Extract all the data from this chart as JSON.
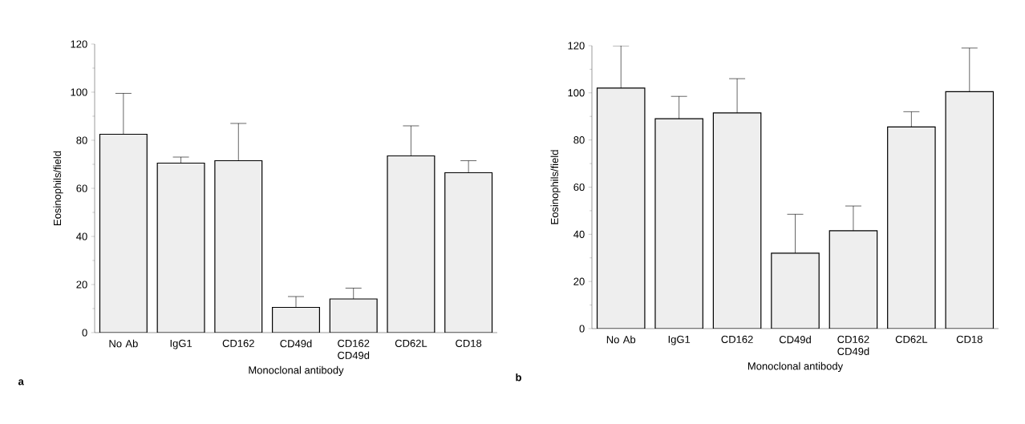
{
  "chart_data": [
    {
      "type": "bar",
      "categories": [
        "No Ab",
        "IgG1",
        "CD162",
        "CD49d",
        "CD162 CD49d",
        "CD62L",
        "CD18"
      ],
      "values": [
        82.5,
        70.5,
        71.5,
        10.5,
        14,
        73.5,
        66.5
      ],
      "errors": [
        [
          82.5,
          99.5
        ],
        [
          70.5,
          73
        ],
        [
          71.5,
          87
        ],
        [
          10.5,
          15
        ],
        [
          14,
          18.5
        ],
        [
          73.5,
          86
        ],
        [
          66.5,
          71.5
        ]
      ],
      "color": "#eeeeee",
      "ylim": [
        0,
        120
      ],
      "yticks": [
        0,
        20,
        40,
        60,
        80,
        100,
        120
      ],
      "ylabel": "Eosinophils/field",
      "xlabel": "Monoclonal antibody",
      "annotations": [
        "a"
      ]
    },
    {
      "type": "bar",
      "categories": [
        "No Ab",
        "IgG1",
        "CD162",
        "CD49d",
        "CD162 CD49d",
        "CD62L",
        "CD18"
      ],
      "values": [
        102,
        89,
        91.5,
        32,
        41.5,
        85.5,
        100.5
      ],
      "errors": [
        [
          102,
          120
        ],
        [
          89,
          98.5
        ],
        [
          91.5,
          106
        ],
        [
          32,
          48.5
        ],
        [
          41.5,
          52
        ],
        [
          85.5,
          92
        ],
        [
          100.5,
          119
        ]
      ],
      "color": "#eeeeee",
      "ylim": [
        0,
        120
      ],
      "yticks": [
        0,
        20,
        40,
        60,
        80,
        100,
        120
      ],
      "ylabel": "Eosinophils/field",
      "xlabel": "Monoclonal antibody",
      "annotations": [
        "b"
      ]
    }
  ]
}
